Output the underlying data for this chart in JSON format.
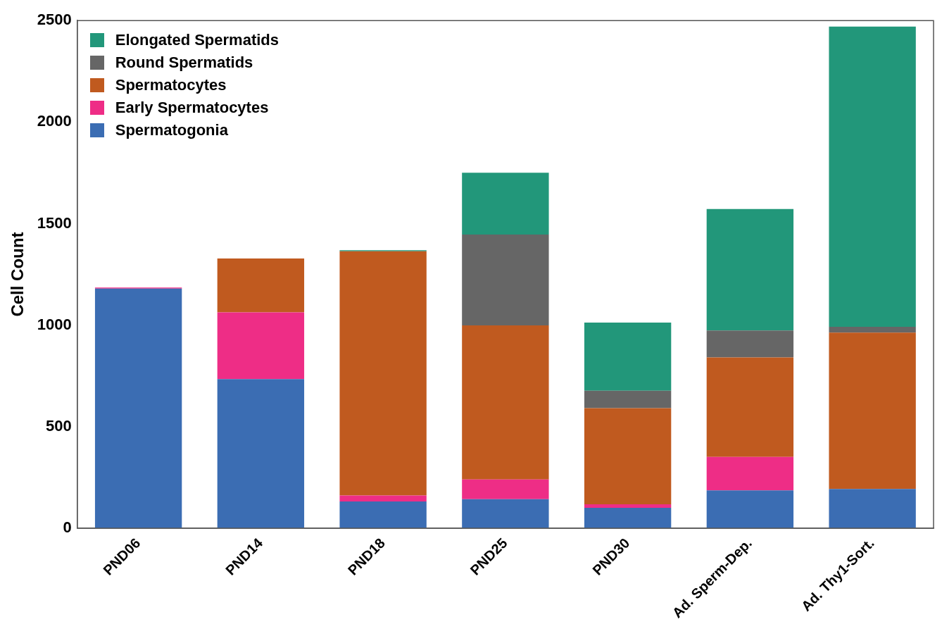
{
  "chart_data": {
    "type": "bar",
    "stacked": true,
    "ylabel": "Cell Count",
    "categories": [
      "PND06",
      "PND14",
      "PND18",
      "PND25",
      "PND30",
      "Ad. Sperm-Dep.",
      "Ad. Thy1-Sort."
    ],
    "series": [
      {
        "name": "Spermatogonia",
        "color": "#3b6db3",
        "values": [
          1180,
          734,
          132,
          143,
          100,
          186,
          193
        ]
      },
      {
        "name": "Early Spermatocytes",
        "color": "#ee2d86",
        "values": [
          5,
          329,
          29,
          97,
          18,
          165,
          0
        ]
      },
      {
        "name": "Spermatocytes",
        "color": "#c05a1f",
        "values": [
          0,
          265,
          1203,
          759,
          473,
          490,
          770
        ]
      },
      {
        "name": "Round Spermatids",
        "color": "#666666",
        "values": [
          0,
          0,
          0,
          447,
          86,
          133,
          29
        ]
      },
      {
        "name": "Elongated Spermatids",
        "color": "#22977a",
        "values": [
          0,
          0,
          5,
          305,
          336,
          598,
          1478
        ]
      }
    ],
    "ylim": [
      0,
      2500
    ],
    "yticks": [
      0,
      500,
      1000,
      1500,
      2000,
      2500
    ],
    "grid": false,
    "legend": "top left"
  }
}
